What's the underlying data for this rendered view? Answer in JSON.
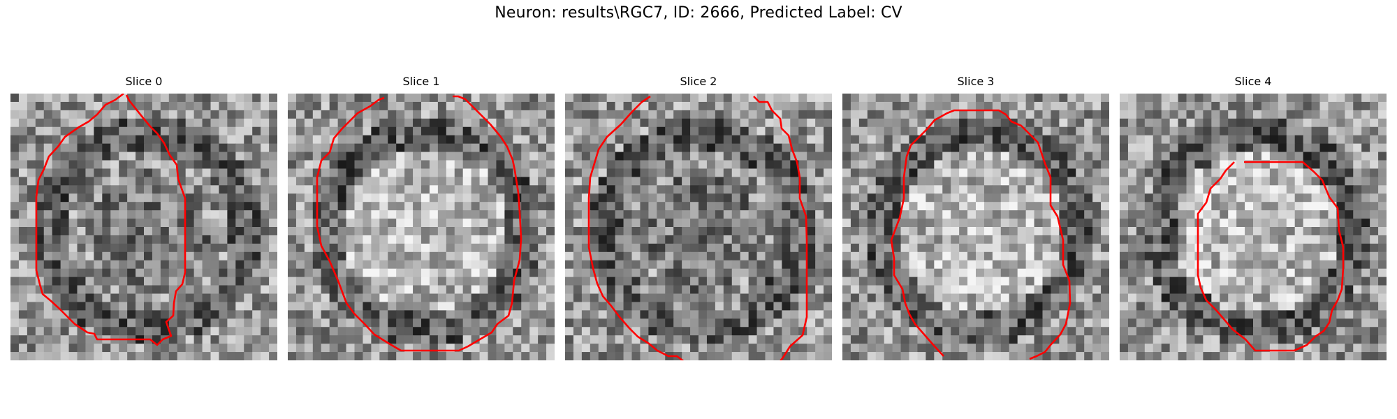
{
  "figure": {
    "title": "Neuron: results\\RGC7, ID: 2666, Predicted Label: CV"
  },
  "panels": [
    {
      "title": "Slice 0",
      "seed": 11,
      "bright_core": false
    },
    {
      "title": "Slice 1",
      "seed": 23,
      "bright_core": true
    },
    {
      "title": "Slice 2",
      "seed": 37,
      "bright_core": false
    },
    {
      "title": "Slice 3",
      "seed": 41,
      "bright_core": true
    },
    {
      "title": "Slice 4",
      "seed": 53,
      "bright_core": true
    }
  ],
  "colors": {
    "contour": "#ff0000",
    "background": "#ffffff"
  }
}
